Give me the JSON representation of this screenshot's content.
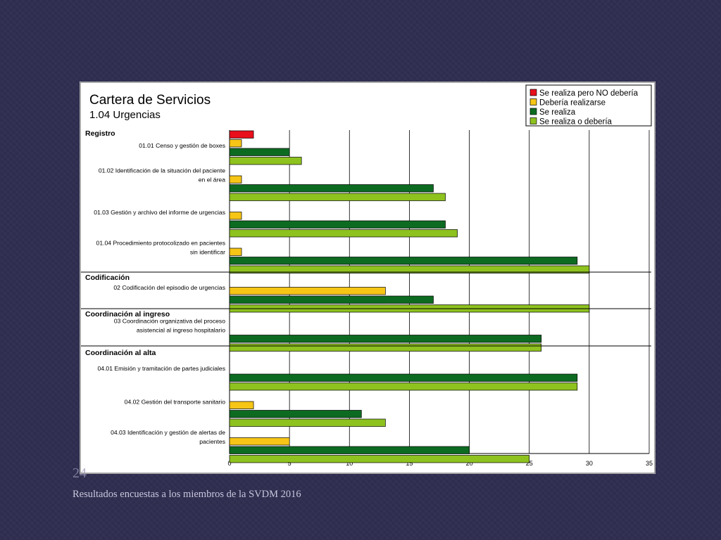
{
  "slide": {
    "number": "24",
    "caption": "Resultados encuestas a los miembros de la SVDM 2016"
  },
  "chart_data": {
    "type": "bar",
    "orientation": "horizontal",
    "title": "Cartera de Servicios",
    "subtitle": "1.04 Urgencias",
    "xlim": [
      0,
      35
    ],
    "xticks": [
      0,
      5,
      10,
      15,
      20,
      25,
      30,
      35
    ],
    "grid": true,
    "legend_position": "top-right",
    "series": [
      {
        "key": "no",
        "name": "Se realiza pero NO debería",
        "color": "#e8101c"
      },
      {
        "key": "deberia",
        "name": "Debería realizarse",
        "color": "#f6c516"
      },
      {
        "key": "realiza",
        "name": "Se realiza",
        "color": "#0d6b21"
      },
      {
        "key": "total",
        "name": "Se realiza o debería",
        "color": "#8ec21f"
      }
    ],
    "sections": [
      {
        "name": "Registro",
        "items": [
          {
            "label": [
              "01.01 Censo y gestión de boxes"
            ],
            "values": {
              "no": 2,
              "deberia": 1,
              "realiza": 5,
              "total": 6
            }
          },
          {
            "label": [
              "01.02 Identificación de la situación del paciente",
              "en el área"
            ],
            "values": {
              "deberia": 1,
              "realiza": 17,
              "total": 18
            }
          },
          {
            "label": [
              "01.03 Gestión y archivo del informe de urgencias"
            ],
            "values": {
              "deberia": 1,
              "realiza": 18,
              "total": 19
            }
          },
          {
            "label": [
              "01.04 Procedimiento protocolizado en pacientes",
              "sin identificar"
            ],
            "values": {
              "deberia": 1,
              "realiza": 29,
              "total": 30
            }
          }
        ]
      },
      {
        "name": "Codificación",
        "items": [
          {
            "label": [
              "02 Codificación del episodio de urgencias"
            ],
            "values": {
              "deberia": 13,
              "realiza": 17,
              "total": 30
            }
          }
        ]
      },
      {
        "name": "Coordinación al ingreso",
        "items": [
          {
            "label": [
              "03 Coordinación organizativa del proceso",
              "asistencial al ingreso hospitalario"
            ],
            "values": {
              "realiza": 26,
              "total": 26
            }
          }
        ]
      },
      {
        "name": "Coordinación al alta",
        "items": [
          {
            "label": [
              "04.01 Emisión y tramitación de partes judiciales"
            ],
            "values": {
              "realiza": 29,
              "total": 29
            }
          },
          {
            "label": [
              "04.02 Gestión del transporte sanitario"
            ],
            "values": {
              "deberia": 2,
              "realiza": 11,
              "total": 13
            }
          },
          {
            "label": [
              "04.03 Identificación y gestión de alertas de",
              "pacientes"
            ],
            "values": {
              "deberia": 5,
              "realiza": 20,
              "total": 25
            }
          }
        ]
      }
    ]
  }
}
